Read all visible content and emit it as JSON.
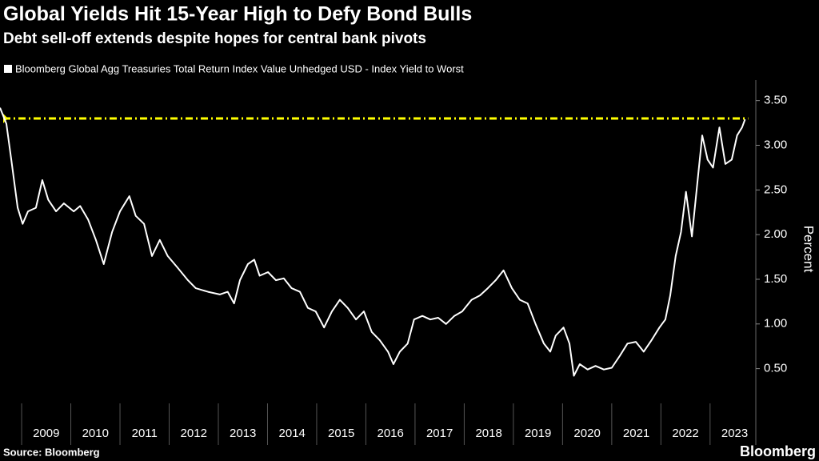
{
  "chart_data": {
    "type": "line",
    "title": "Global Yields Hit 15-Year High to Defy Bond Bulls",
    "subtitle": "Debt sell-off extends despite hopes for central bank pivots",
    "y_label": "Percent",
    "source": "Source: Bloomberg",
    "brand": "Bloomberg",
    "series": [
      {
        "name": "Bloomberg Global Agg Treasuries Total Return Index Value Unhedged USD - Index Yield to Worst",
        "color": "#ffffff",
        "x": [
          2008.56,
          2008.69,
          2008.79,
          2008.92,
          2009.02,
          2009.13,
          2009.29,
          2009.42,
          2009.54,
          2009.7,
          2009.86,
          2010.06,
          2010.19,
          2010.35,
          2010.51,
          2010.67,
          2010.84,
          2011.0,
          2011.19,
          2011.32,
          2011.49,
          2011.65,
          2011.81,
          2011.97,
          2012.17,
          2012.38,
          2012.54,
          2012.79,
          2013.03,
          2013.19,
          2013.32,
          2013.44,
          2013.6,
          2013.73,
          2013.84,
          2014.01,
          2014.17,
          2014.33,
          2014.49,
          2014.66,
          2014.82,
          2014.98,
          2015.15,
          2015.31,
          2015.47,
          2015.63,
          2015.8,
          2015.96,
          2016.12,
          2016.28,
          2016.45,
          2016.56,
          2016.69,
          2016.85,
          2016.98,
          2017.15,
          2017.31,
          2017.47,
          2017.63,
          2017.8,
          2017.96,
          2018.15,
          2018.32,
          2018.48,
          2018.64,
          2018.8,
          2018.97,
          2019.13,
          2019.29,
          2019.45,
          2019.62,
          2019.75,
          2019.86,
          2020.02,
          2020.14,
          2020.23,
          2020.35,
          2020.51,
          2020.67,
          2020.84,
          2021.0,
          2021.16,
          2021.32,
          2021.49,
          2021.65,
          2021.81,
          2021.97,
          2022.09,
          2022.19,
          2022.3,
          2022.41,
          2022.51,
          2022.63,
          2022.74,
          2022.84,
          2022.95,
          2023.06,
          2023.19,
          2023.31,
          2023.44,
          2023.55,
          2023.65,
          2023.71
        ],
        "values": [
          3.42,
          3.24,
          2.84,
          2.3,
          2.12,
          2.26,
          2.3,
          2.61,
          2.39,
          2.26,
          2.35,
          2.26,
          2.32,
          2.17,
          1.94,
          1.67,
          2.03,
          2.26,
          2.43,
          2.21,
          2.12,
          1.76,
          1.94,
          1.76,
          1.63,
          1.49,
          1.4,
          1.36,
          1.33,
          1.36,
          1.23,
          1.49,
          1.67,
          1.72,
          1.54,
          1.58,
          1.49,
          1.51,
          1.4,
          1.36,
          1.18,
          1.14,
          0.96,
          1.14,
          1.27,
          1.18,
          1.05,
          1.14,
          0.91,
          0.82,
          0.69,
          0.55,
          0.69,
          0.78,
          1.05,
          1.09,
          1.05,
          1.07,
          1.0,
          1.09,
          1.14,
          1.27,
          1.32,
          1.4,
          1.49,
          1.6,
          1.4,
          1.27,
          1.23,
          1.0,
          0.78,
          0.69,
          0.87,
          0.96,
          0.78,
          0.42,
          0.55,
          0.49,
          0.53,
          0.49,
          0.51,
          0.64,
          0.78,
          0.8,
          0.69,
          0.82,
          0.96,
          1.05,
          1.32,
          1.76,
          2.03,
          2.48,
          1.98,
          2.57,
          3.11,
          2.84,
          2.75,
          3.2,
          2.79,
          2.84,
          3.11,
          3.2,
          3.29
        ]
      }
    ],
    "reference_line": {
      "value": 3.3,
      "color": "#ffff00"
    },
    "xlim": [
      2008.56,
      2023.93
    ],
    "xticks": [
      {
        "value": 2009.5,
        "label": "2009"
      },
      {
        "value": 2010.5,
        "label": "2010"
      },
      {
        "value": 2011.5,
        "label": "2011"
      },
      {
        "value": 2012.5,
        "label": "2012"
      },
      {
        "value": 2013.5,
        "label": "2013"
      },
      {
        "value": 2014.5,
        "label": "2014"
      },
      {
        "value": 2015.5,
        "label": "2015"
      },
      {
        "value": 2016.5,
        "label": "2016"
      },
      {
        "value": 2017.5,
        "label": "2017"
      },
      {
        "value": 2018.5,
        "label": "2018"
      },
      {
        "value": 2019.5,
        "label": "2019"
      },
      {
        "value": 2020.5,
        "label": "2020"
      },
      {
        "value": 2021.5,
        "label": "2021"
      },
      {
        "value": 2022.5,
        "label": "2022"
      },
      {
        "value": 2023.5,
        "label": "2023"
      }
    ],
    "ylim": [
      -0.05,
      3.73
    ],
    "yticks": [
      {
        "value": 0.5,
        "label": "0.50"
      },
      {
        "value": 1,
        "label": "1.00"
      },
      {
        "value": 1.5,
        "label": "1.50"
      },
      {
        "value": 2,
        "label": "2.00"
      },
      {
        "value": 2.5,
        "label": "2.50"
      },
      {
        "value": 3,
        "label": "3.00"
      },
      {
        "value": 3.5,
        "label": "3.50"
      }
    ]
  }
}
